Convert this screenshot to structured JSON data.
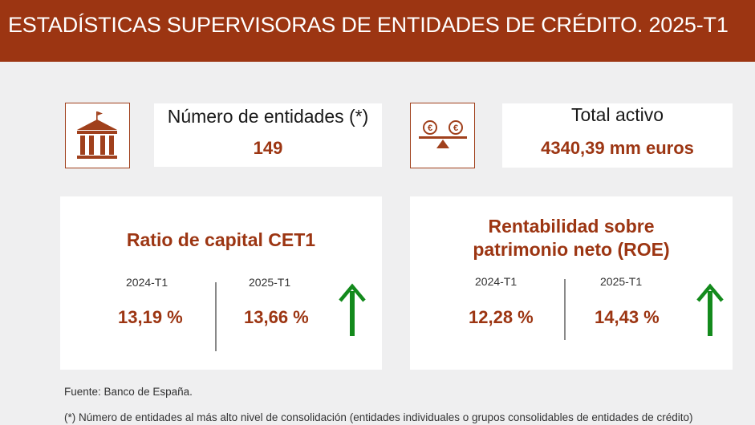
{
  "header": {
    "title": "ESTADÍSTICAS SUPERVISORAS DE ENTIDADES DE CRÉDITO. 2025-T1"
  },
  "stats": {
    "entities": {
      "label": "Número de entidades (*)",
      "value": "149",
      "icon": "bank-building-icon"
    },
    "assets": {
      "label": "Total activo",
      "value": "4340,39 mm euros",
      "icon": "euro-balance-icon"
    }
  },
  "kpis": {
    "cet1": {
      "title": "Ratio de capital CET1",
      "prev_period": "2024-T1",
      "prev_value": "13,19 %",
      "curr_period": "2025-T1",
      "curr_value": "13,66 %",
      "trend": "up"
    },
    "roe": {
      "title_line1": "Rentabilidad sobre",
      "title_line2": "patrimonio neto (ROE)",
      "prev_period": "2024-T1",
      "prev_value": "12,28 %",
      "curr_period": "2025-T1",
      "curr_value": "14,43 %",
      "trend": "up"
    }
  },
  "footer": {
    "source": "Fuente: Banco de España.",
    "footnote": "(*) Número de entidades al más alto nivel de consolidación (entidades individuales o grupos consolidables de entidades de crédito)"
  },
  "colors": {
    "brand": "#9c3512",
    "up_arrow": "#138a1c",
    "background": "#efeff0"
  }
}
